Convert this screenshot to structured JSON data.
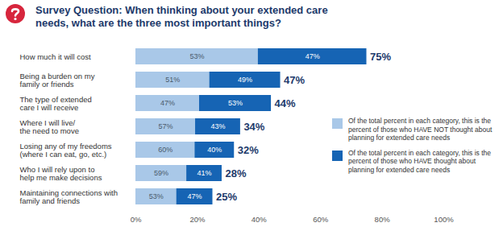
{
  "chart_data": {
    "type": "bar",
    "orientation": "horizontal",
    "stacked": true,
    "data_labels": true,
    "grid": false,
    "legend": "right",
    "title": "Survey Question: When thinking about your extended care needs, what are the three most important things?",
    "categories": [
      "How much it will cost",
      "Being a burden on my\nfamily or friends",
      "The type of extended\ncare I will receive",
      "Where I will live/\nthe need to move",
      "Losing any of my freedoms\n(where I can eat, go, etc.)",
      "Who I will rely upon to\nhelp me make decisions",
      "Maintaining connections with\nfamily and friends"
    ],
    "totals": [
      75,
      47,
      44,
      34,
      32,
      28,
      25
    ],
    "total_labels": [
      "75%",
      "47%",
      "44%",
      "34%",
      "32%",
      "28%",
      "25%"
    ],
    "series": [
      {
        "name": "Of the total percent in each category, this is the percent of those who HAVE NOT thought about planning for extended care needs",
        "color": "#a9c8e8",
        "values": [
          53,
          51,
          47,
          57,
          60,
          59,
          53
        ],
        "value_labels": [
          "53%",
          "51%",
          "47%",
          "57%",
          "60%",
          "59%",
          "53%"
        ]
      },
      {
        "name": "Of the total percent in each category, this is the percent of those who HAVE thought about planning for extended care needs",
        "color": "#1664b4",
        "values": [
          47,
          49,
          53,
          43,
          40,
          41,
          47
        ],
        "value_labels": [
          "47%",
          "49%",
          "53%",
          "43%",
          "40%",
          "41%",
          "47%"
        ]
      }
    ],
    "xlim": [
      0,
      100
    ],
    "xticks": [
      {
        "value": 0,
        "label": "0%"
      },
      {
        "value": 20,
        "label": "20%"
      },
      {
        "value": 40,
        "label": "40%"
      },
      {
        "value": 60,
        "label": "60%"
      },
      {
        "value": 80,
        "label": "80%"
      },
      {
        "value": 100,
        "label": "100%"
      }
    ]
  }
}
